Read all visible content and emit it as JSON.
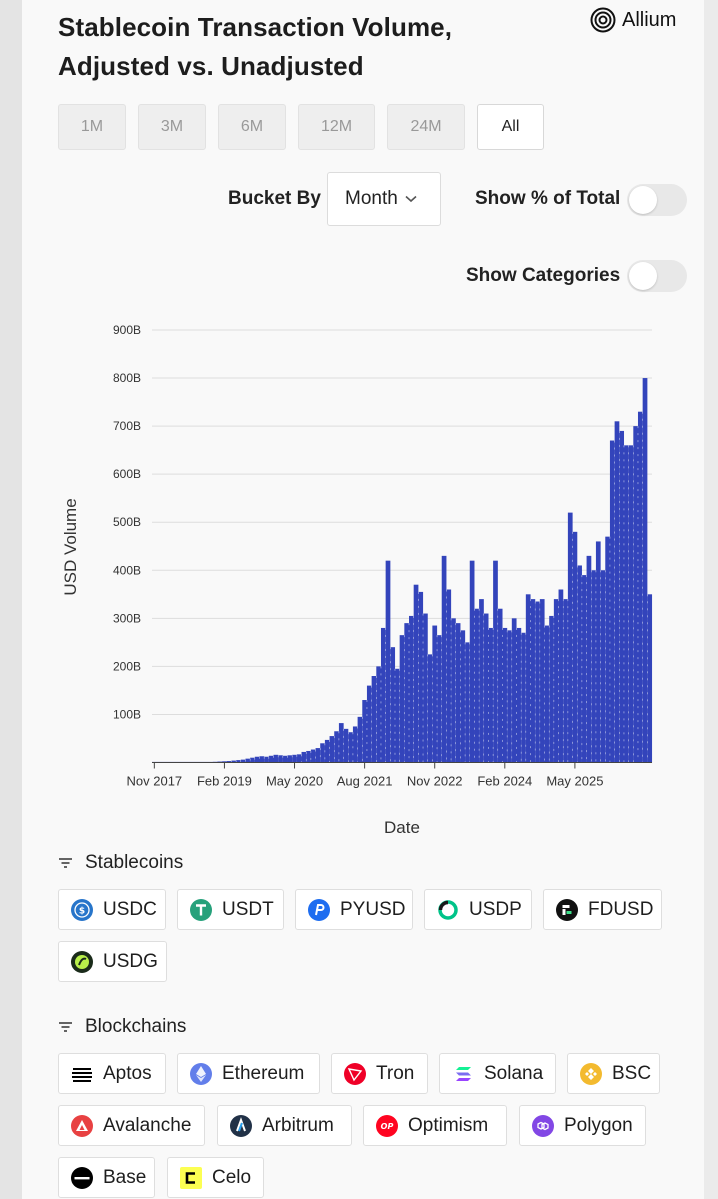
{
  "title": "Stablecoin Transaction Volume, Adjusted vs. Unadjusted",
  "brand": "Allium",
  "ranges": [
    "1M",
    "3M",
    "6M",
    "12M",
    "24M",
    "All"
  ],
  "active_range": "All",
  "controls": {
    "bucket_label": "Bucket By",
    "bucket_value": "Month",
    "pct_label": "Show % of Total",
    "pct_enabled": false,
    "cat_label": "Show Categories",
    "cat_enabled": false
  },
  "chart_data": {
    "type": "bar",
    "title": "",
    "xlabel": "Date",
    "ylabel": "USD Volume",
    "ylim": [
      0,
      900
    ],
    "y_unit": "B",
    "yticks": [
      "100B",
      "200B",
      "300B",
      "400B",
      "500B",
      "600B",
      "700B",
      "800B",
      "900B"
    ],
    "xticks": [
      "Nov 2017",
      "Feb 2019",
      "May 2020",
      "Aug 2021",
      "Nov 2022",
      "Feb 2024",
      "May 2025"
    ],
    "grid": true,
    "bar_color": "#3344bb",
    "start_month": "Nov 2017",
    "values": [
      0.2,
      0.2,
      0.2,
      0.2,
      0.3,
      0.3,
      0.3,
      0.4,
      0.4,
      0.5,
      0.6,
      0.7,
      1,
      1.5,
      2,
      2.5,
      3,
      4,
      5,
      6,
      8,
      10,
      12,
      13,
      12,
      14,
      16,
      15,
      14,
      15,
      16,
      17,
      22,
      24,
      27,
      30,
      40,
      47,
      55,
      65,
      82,
      70,
      63,
      75,
      95,
      130,
      160,
      180,
      200,
      280,
      420,
      240,
      195,
      265,
      290,
      305,
      370,
      355,
      310,
      225,
      285,
      265,
      430,
      360,
      300,
      290,
      275,
      250,
      420,
      320,
      340,
      310,
      280,
      420,
      320,
      280,
      275,
      300,
      280,
      270,
      350,
      340,
      335,
      340,
      285,
      305,
      340,
      360,
      340,
      520,
      480,
      410,
      390,
      430,
      400,
      460,
      400,
      470,
      670,
      710,
      690,
      660,
      660,
      700,
      730,
      800,
      350
    ]
  },
  "stablecoins": {
    "heading": "Stablecoins",
    "items": [
      {
        "label": "USDC",
        "icon": "usdc-icon",
        "color": "#2775ca"
      },
      {
        "label": "USDT",
        "icon": "usdt-icon",
        "color": "#26a17b"
      },
      {
        "label": "PYUSD",
        "icon": "pyusd-icon",
        "color": "#1e6df0"
      },
      {
        "label": "USDP",
        "icon": "usdp-icon",
        "color": "#00c389"
      },
      {
        "label": "FDUSD",
        "icon": "fdusd-icon",
        "color": "#111111"
      },
      {
        "label": "USDG",
        "icon": "usdg-icon",
        "color": "#1a2b1a"
      }
    ]
  },
  "blockchains": {
    "heading": "Blockchains",
    "items": [
      {
        "label": "Aptos",
        "icon": "aptos-icon",
        "color": "#000000"
      },
      {
        "label": "Ethereum",
        "icon": "ethereum-icon",
        "color": "#627eea"
      },
      {
        "label": "Tron",
        "icon": "tron-icon",
        "color": "#ef0027"
      },
      {
        "label": "Solana",
        "icon": "solana-icon",
        "color": "#9945ff"
      },
      {
        "label": "BSC",
        "icon": "bsc-icon",
        "color": "#f3ba2f"
      },
      {
        "label": "Avalanche",
        "icon": "avalanche-icon",
        "color": "#e84142"
      },
      {
        "label": "Arbitrum",
        "icon": "arbitrum-icon",
        "color": "#213147"
      },
      {
        "label": "Optimism",
        "icon": "optimism-icon",
        "color": "#ff0420"
      },
      {
        "label": "Polygon",
        "icon": "polygon-icon",
        "color": "#8247e5"
      },
      {
        "label": "Base",
        "icon": "base-icon",
        "color": "#000000"
      },
      {
        "label": "Celo",
        "icon": "celo-icon",
        "color": "#fcff52"
      }
    ]
  }
}
